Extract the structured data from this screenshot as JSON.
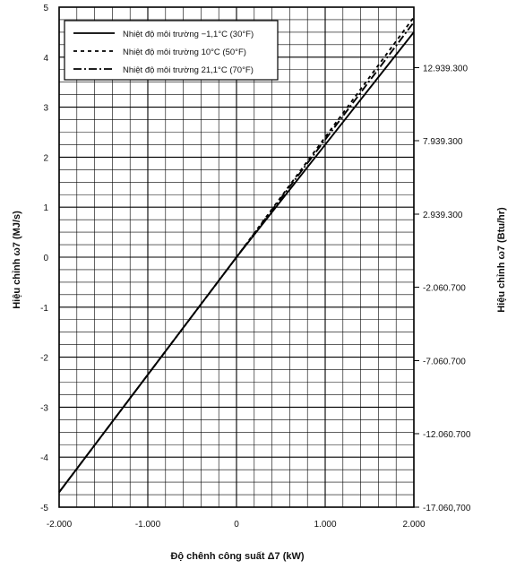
{
  "chart_data": {
    "type": "line",
    "title": "",
    "xlabel": "Độ chênh công suất Δ7 (kW)",
    "ylabel": "Hiệu chỉnh ω7 (MJ/s)",
    "y2label": "Hiệu chỉnh ω7 (Btu/hr)",
    "xlim": [
      -2000,
      2000
    ],
    "ylim": [
      -5,
      5
    ],
    "x_ticks": [
      -2000,
      -1000,
      0,
      1000,
      2000
    ],
    "x_tick_labels": [
      "-2.000",
      "-1.000",
      "0",
      "1.000",
      "2.000"
    ],
    "y_ticks": [
      -5,
      -4,
      -3,
      -2,
      -1,
      0,
      1,
      2,
      3,
      4,
      5
    ],
    "y_tick_labels": [
      "-5",
      "-4",
      "-3",
      "-2",
      "-1",
      "0",
      "1",
      "2",
      "3",
      "4",
      "5"
    ],
    "y2_ticks": [
      {
        "value": 3.79,
        "label": "12.939.300"
      },
      {
        "value": 2.33,
        "label": "7.939.300"
      },
      {
        "value": 0.86,
        "label": "2.939.300"
      },
      {
        "value": -0.6,
        "label": "-2.060.700"
      },
      {
        "value": -2.07,
        "label": "-7.060.700"
      },
      {
        "value": -3.53,
        "label": "-12.060.700"
      },
      {
        "value": -5.0,
        "label": "-17.060,700"
      }
    ],
    "grid": true,
    "grid_x_step": 200,
    "grid_y_step": 0.25,
    "legend_position": "top-left",
    "series": [
      {
        "name": "Nhiệt độ môi trường −1,1°C (30°F)",
        "style": "solid",
        "x": [
          -2000,
          0,
          2000
        ],
        "y": [
          -4.7,
          0.0,
          4.5
        ]
      },
      {
        "name": "Nhiệt độ môi trường 10°C (50°F)",
        "style": "dotted",
        "x": [
          -2000,
          0,
          2000
        ],
        "y": [
          -4.7,
          0.0,
          4.8
        ]
      },
      {
        "name": "Nhiệt độ môi trường 21,1°C (70°F)",
        "style": "dashdot",
        "x": [
          -2000,
          0,
          2000
        ],
        "y": [
          -4.7,
          0.0,
          4.7
        ]
      }
    ]
  }
}
